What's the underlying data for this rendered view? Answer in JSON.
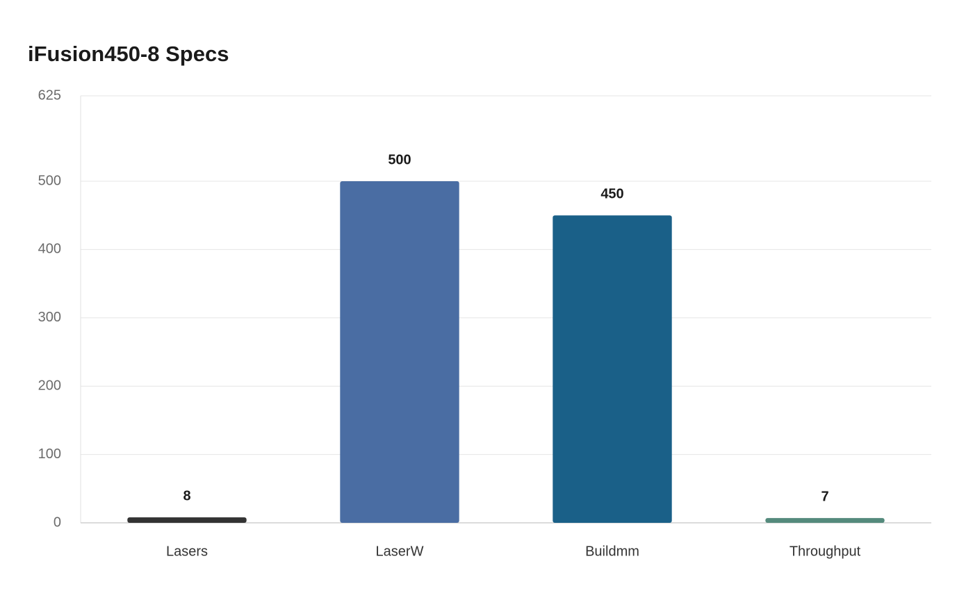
{
  "chart_data": {
    "type": "bar",
    "title": "iFusion450-8 Specs",
    "categories": [
      "Lasers",
      "LaserW",
      "Buildmm",
      "Throughput"
    ],
    "values": [
      8,
      500,
      450,
      7
    ],
    "colors": [
      "#333333",
      "#4a6da3",
      "#1a6088",
      "#548a7c"
    ],
    "ylim": [
      0,
      625
    ],
    "yticks": [
      0,
      100,
      200,
      300,
      400,
      500,
      625
    ],
    "grid": true
  }
}
